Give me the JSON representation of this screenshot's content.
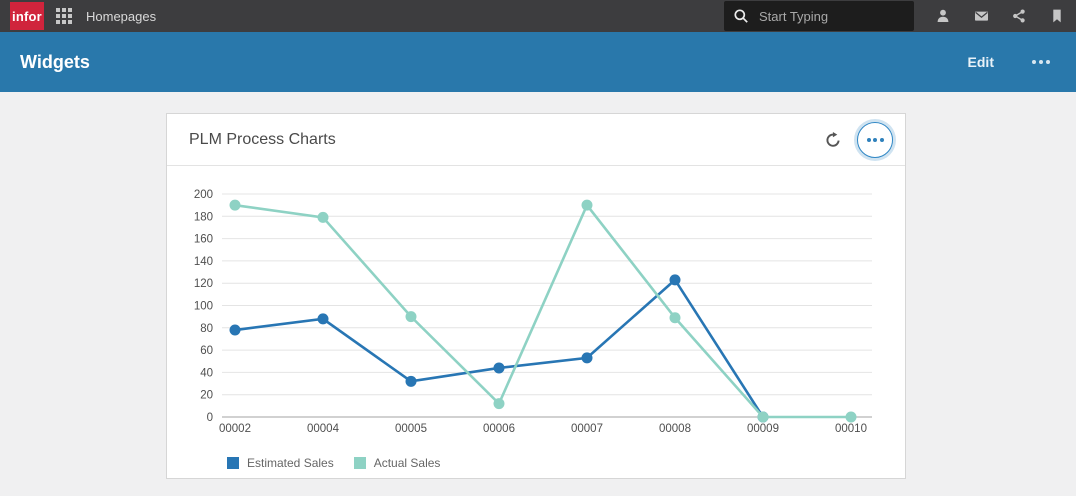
{
  "topbar": {
    "logo_text": "infor",
    "app_label": "Homepages",
    "search_placeholder": "Start Typing",
    "icons": [
      "app-launcher-icon",
      "search-icon",
      "user-icon",
      "mail-icon",
      "share-icon",
      "bookmark-icon"
    ]
  },
  "page_header": {
    "title": "Widgets",
    "edit_label": "Edit",
    "icons": [
      "more-options-icon"
    ]
  },
  "widget": {
    "title": "PLM Process Charts",
    "icons": [
      "refresh-icon",
      "more-options-icon"
    ]
  },
  "colors": {
    "topbar_bg": "#3d3d3f",
    "header_bg": "#2978ab",
    "brand_red": "#d0243c",
    "estimated_series": "#2876b4",
    "actual_series": "#8ed2c4"
  },
  "chart_data": {
    "type": "line",
    "categories": [
      "00002",
      "00004",
      "00005",
      "00006",
      "00007",
      "00008",
      "00009",
      "00010"
    ],
    "series": [
      {
        "name": "Estimated Sales",
        "color": "#2876b4",
        "values": [
          78,
          88,
          32,
          44,
          53,
          123,
          0,
          null
        ]
      },
      {
        "name": "Actual Sales",
        "color": "#8ed2c4",
        "values": [
          190,
          179,
          90,
          12,
          190,
          89,
          0,
          0
        ]
      }
    ],
    "title": "",
    "xlabel": "",
    "ylabel": "",
    "ylim": [
      0,
      200
    ],
    "ytick_step": 20,
    "grid": true,
    "legend_position": "bottom-left",
    "marker": "circle"
  }
}
